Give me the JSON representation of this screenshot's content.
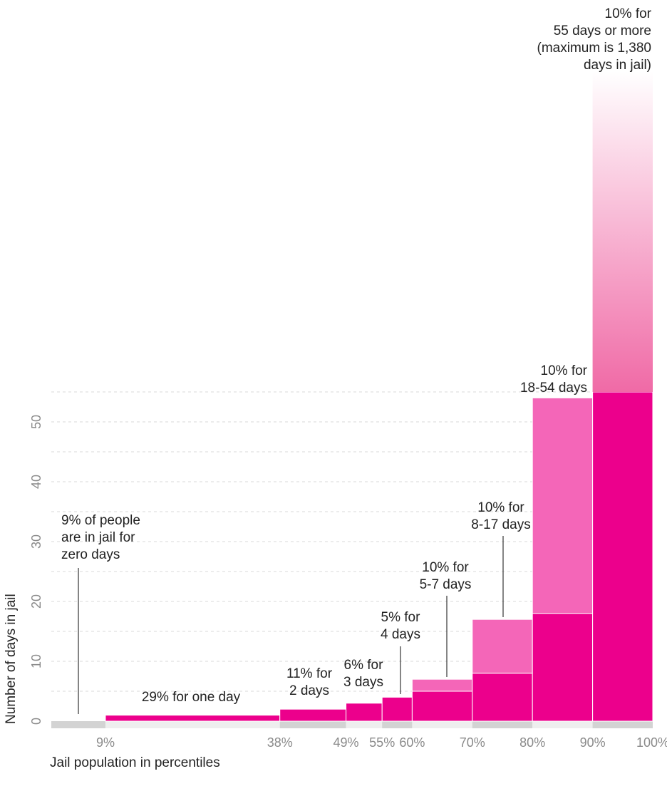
{
  "chart_data": {
    "type": "bar",
    "title": "",
    "xlabel": "Jail population in percentiles",
    "ylabel": "Number of days in jail",
    "ylim": [
      0,
      55
    ],
    "grid": true,
    "y_ticks": [
      0,
      10,
      20,
      30,
      40,
      50
    ],
    "x_tick_labels": [
      "9%",
      "38%",
      "49%",
      "55%",
      "60%",
      "70%",
      "80%",
      "90%",
      "100%"
    ],
    "x_tick_positions": [
      9,
      38,
      49,
      55,
      60,
      70,
      80,
      90,
      100
    ],
    "bins": [
      {
        "start": 0,
        "end": 9,
        "min_days": 0,
        "max_days": 0,
        "label": "9% of people are in jail for zero days"
      },
      {
        "start": 9,
        "end": 38,
        "min_days": 1,
        "max_days": 1,
        "label": "29% for one day"
      },
      {
        "start": 38,
        "end": 49,
        "min_days": 2,
        "max_days": 2,
        "label": "11% for 2 days"
      },
      {
        "start": 49,
        "end": 55,
        "min_days": 3,
        "max_days": 3,
        "label": "6% for 3 days"
      },
      {
        "start": 55,
        "end": 60,
        "min_days": 4,
        "max_days": 4,
        "label": "5% for 4 days"
      },
      {
        "start": 60,
        "end": 70,
        "min_days": 5,
        "max_days": 7,
        "label": "10% for 5-7 days"
      },
      {
        "start": 70,
        "end": 80,
        "min_days": 8,
        "max_days": 17,
        "label": "10% for 8-17 days"
      },
      {
        "start": 80,
        "end": 90,
        "min_days": 18,
        "max_days": 54,
        "label": "10% for 18-54 days"
      },
      {
        "start": 90,
        "end": 100,
        "min_days": 55,
        "max_days": 1380,
        "label": "10% for 55 days or more (maximum is 1,380 days in jail)"
      }
    ],
    "annotations": [
      {
        "id": "zero",
        "lines": [
          "9% of people",
          "are in jail for",
          "zero days"
        ]
      },
      {
        "id": "one",
        "lines": [
          "29% for one day"
        ]
      },
      {
        "id": "two",
        "lines": [
          "11% for",
          "2 days"
        ]
      },
      {
        "id": "three",
        "lines": [
          "6% for",
          "3 days"
        ]
      },
      {
        "id": "four",
        "lines": [
          "5% for",
          "4 days"
        ]
      },
      {
        "id": "five",
        "lines": [
          "10% for",
          "5-7 days"
        ]
      },
      {
        "id": "eight",
        "lines": [
          "10% for",
          "8-17 days"
        ]
      },
      {
        "id": "eighteen",
        "lines": [
          "10% for",
          "18-54 days"
        ]
      },
      {
        "id": "fiftyfive",
        "lines": [
          "10% for",
          "55 days or more",
          "(maximum is 1,380",
          "days in jail)"
        ]
      }
    ],
    "colors": {
      "solid": "#ec008c",
      "range": "#f466b8",
      "zero": "#d3d3d3",
      "baseline_light": "#eeeeee"
    }
  }
}
